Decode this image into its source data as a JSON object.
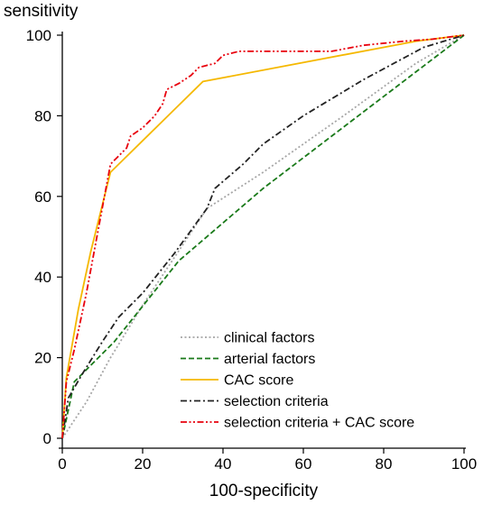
{
  "chart_data": {
    "type": "line",
    "xlabel": "100-specificity",
    "ylabel": "sensitivity",
    "xlim": [
      0,
      100
    ],
    "ylim": [
      0,
      100
    ],
    "xticks": [
      0,
      20,
      40,
      60,
      80,
      100
    ],
    "yticks": [
      0,
      20,
      40,
      60,
      80,
      100
    ],
    "grid": false,
    "legend_position": "bottom-right",
    "series": [
      {
        "name": "clinical factors",
        "color": "#a6a6a6",
        "dash": "dotted",
        "x": [
          0,
          6,
          12,
          20,
          30,
          36,
          50,
          70,
          88,
          100
        ],
        "y": [
          0,
          9,
          20,
          33,
          48,
          57,
          66,
          80,
          93,
          100
        ]
      },
      {
        "name": "arterial factors",
        "color": "#1a7a1a",
        "dash": "dashed",
        "x": [
          0,
          3,
          13,
          29,
          50,
          75,
          100
        ],
        "y": [
          0,
          14,
          24,
          44,
          62,
          81,
          100
        ]
      },
      {
        "name": "CAC score",
        "color": "#f5b800",
        "dash": "solid",
        "x": [
          0,
          1,
          4,
          7,
          10,
          12,
          35,
          88,
          100
        ],
        "y": [
          0,
          15,
          32,
          46,
          58,
          66,
          88.5,
          98.5,
          100
        ]
      },
      {
        "name": "selection criteria",
        "color": "#222222",
        "dash": "dashdot",
        "x": [
          0,
          1.5,
          5,
          10,
          14,
          20,
          28,
          36,
          38,
          45,
          50,
          60,
          75,
          90,
          100
        ],
        "y": [
          0,
          10,
          16,
          24,
          30,
          36,
          46,
          57,
          62,
          68,
          73,
          80,
          89,
          97,
          100
        ]
      },
      {
        "name": "selection criteria + CAC score",
        "color": "#e8000d",
        "dash": "dashdotdot",
        "x": [
          0,
          1,
          3,
          6,
          9,
          12,
          14,
          16,
          17,
          20,
          23,
          25,
          26,
          29,
          32,
          34,
          36,
          38,
          40,
          44,
          50,
          60,
          67,
          75,
          85,
          92,
          100
        ],
        "y": [
          0,
          14,
          22,
          36,
          52,
          68,
          70,
          72,
          75,
          77,
          80,
          83,
          86.5,
          88,
          90,
          92,
          92.5,
          93,
          95,
          96,
          96,
          96,
          96,
          97.5,
          98.5,
          99,
          100
        ]
      }
    ]
  }
}
